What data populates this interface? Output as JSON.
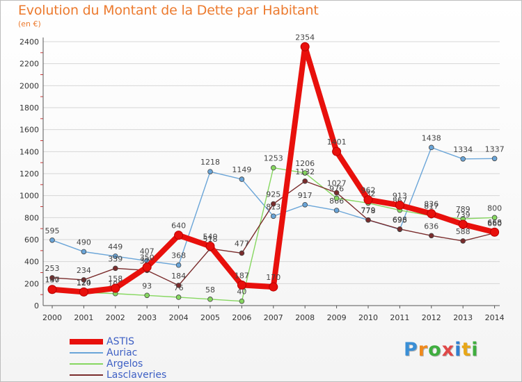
{
  "header": {
    "title": "Evolution du Montant de la Dette par Habitant",
    "subtitle": "(en €)"
  },
  "logo_text": "Proxiti",
  "logo_colors": [
    "#3a8fd6",
    "#f08a1c",
    "#3fae3f",
    "#e04848",
    "#2f7fd0",
    "#e8a717",
    "#3fae3f"
  ],
  "colors": {
    "axis": "#555555",
    "grid": "#d6d6d6",
    "title": "#ec7a2e",
    "legend_text": "#3d5fc4"
  },
  "chart_data": {
    "type": "line",
    "title": "Evolution du Montant de la Dette par Habitant",
    "subtitle": "(en €)",
    "xlabel": "",
    "ylabel": "",
    "x": [
      "2000",
      "2001",
      "2002",
      "2003",
      "2004",
      "2005",
      "2006",
      "2007",
      "2008",
      "2009",
      "2010",
      "2011",
      "2012",
      "2013",
      "2014"
    ],
    "ylim": [
      0,
      2400
    ],
    "yticks": [
      0,
      200,
      400,
      600,
      800,
      1000,
      1200,
      1400,
      1600,
      1800,
      2000,
      2200,
      2400
    ],
    "grid": true,
    "legend_position": "bottom-left",
    "series": [
      {
        "name": "ASTIS",
        "color": "#e8100c",
        "values": [
          147,
          124,
          158,
          350,
          640,
          540,
          187,
          170,
          2354,
          1401,
          962,
          913,
          836,
          739,
          668
        ]
      },
      {
        "name": "Auriac",
        "color": "#6aa5d8",
        "values": [
          595,
          490,
          449,
          407,
          368,
          1218,
          1149,
          813,
          917,
          866,
          778,
          693,
          1438,
          1334,
          1337
        ]
      },
      {
        "name": "Argelos",
        "color": "#86d760",
        "values": [
          150,
          120,
          109,
          93,
          76,
          58,
          40,
          1253,
          1206,
          976,
          932,
          867,
          817,
          789,
          800
        ]
      },
      {
        "name": "Lasclaveries",
        "color": "#7a2c2c",
        "values": [
          253,
          234,
          339,
          320,
          184,
          518,
          477,
          925,
          1132,
          1027,
          779,
          696,
          636,
          588,
          660
        ]
      }
    ]
  }
}
